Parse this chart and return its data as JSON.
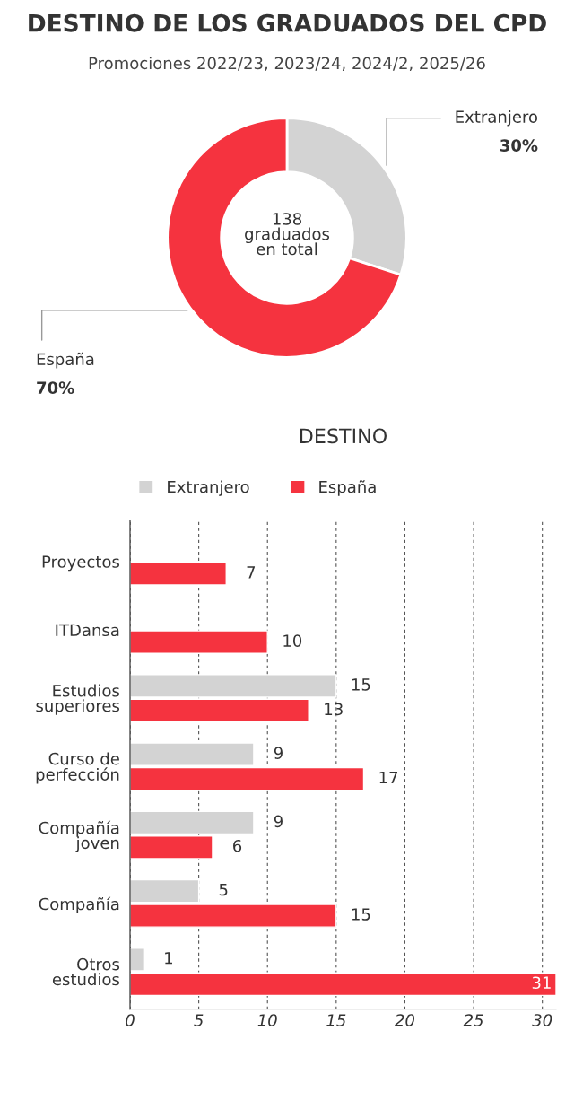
{
  "chart_data": [
    {
      "type": "donut",
      "title": "DESTINO DE LOS GRADUADOS DEL CPD",
      "subtitle": "Promociones 2022/23, 2023/24, 2024/2, 2025/26",
      "categories": [
        "Extranjero",
        "España"
      ],
      "values": [
        30,
        70
      ],
      "colors": [
        "#d3d3d3",
        "#f5333f"
      ],
      "value_labels": [
        "30%",
        "70%"
      ],
      "annotations": [
        "138\ngraduados\nen total"
      ]
    },
    {
      "type": "bar",
      "orientation": "horizontal",
      "title": "DESTINO",
      "categories": [
        "Proyectos",
        "ITDansa",
        "Estudios\nsuperiores",
        "Curso de\nperfección",
        "Compañía\njoven",
        "Compañía",
        "Otros\nestudios"
      ],
      "series": [
        {
          "name": "Extranjero",
          "color": "#d3d3d3",
          "values": [
            null,
            null,
            15,
            9,
            9,
            5,
            1
          ]
        },
        {
          "name": "España",
          "color": "#f5333f",
          "values": [
            7,
            10,
            13,
            17,
            6,
            15,
            31
          ]
        }
      ],
      "xlim": [
        0,
        31
      ],
      "xticks": [
        0,
        5,
        10,
        15,
        20,
        25,
        30
      ],
      "grid": "x",
      "legend": "top",
      "data_labels": true
    }
  ]
}
